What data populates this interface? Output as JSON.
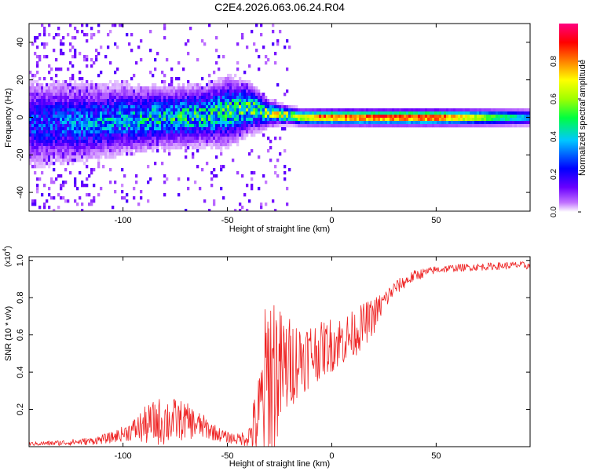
{
  "figure_title": "C2E4.2026.063.06.24.R04",
  "chart_data": [
    {
      "type": "heatmap",
      "title": "C2E4.2026.063.06.24.R04",
      "xlabel": "Height of straight line (km)",
      "ylabel": "Frequency (Hz)",
      "xlim": [
        -145,
        95
      ],
      "ylim": [
        -50,
        50
      ],
      "x_ticks": [
        -100,
        -50,
        0,
        50
      ],
      "x_tick_labels": [
        "-100",
        "-50",
        "0",
        "50"
      ],
      "y_ticks": [
        -40,
        -20,
        0,
        20,
        40
      ],
      "y_tick_labels": [
        "-40",
        "-20",
        "0",
        "20",
        "40"
      ],
      "colorbar": {
        "label": "Normalized spectral amplitude",
        "range": [
          0,
          1
        ],
        "ticks": [
          0.0,
          0.2,
          0.4,
          0.6,
          0.8
        ],
        "tick_labels": [
          "0.0",
          "0.2",
          "0.4",
          "0.6",
          "0.8"
        ],
        "colors": [
          "#ffffff",
          "#c070ff",
          "#6a00ff",
          "#0000ff",
          "#00c8ff",
          "#00ff40",
          "#a0ff00",
          "#ffff00",
          "#ff8000",
          "#ff0000",
          "#ff0080"
        ]
      },
      "ridge": {
        "x": [
          -145,
          -120,
          -100,
          -80,
          -60,
          -50,
          -40,
          -30,
          -20,
          -15,
          0,
          50,
          95
        ],
        "center_hz": [
          -3,
          -3,
          -1,
          0,
          1,
          3,
          5,
          2,
          1,
          0,
          0,
          0,
          0
        ],
        "spread_hz": [
          10,
          9,
          8,
          7,
          7,
          8,
          6,
          3,
          2,
          2,
          2,
          2,
          2
        ],
        "peak_amplitude": [
          0.25,
          0.3,
          0.35,
          0.4,
          0.42,
          0.45,
          0.5,
          0.55,
          0.6,
          0.7,
          0.85,
          0.9,
          0.35
        ]
      }
    },
    {
      "type": "line",
      "xlabel": "Height of straight line (km)",
      "ylabel": "SNR (10 * v/v)",
      "y_multiplier_label": "(x10",
      "y_multiplier_exponent": "4",
      "xlim": [
        -145,
        95
      ],
      "ylim": [
        0,
        1.02
      ],
      "x_ticks": [
        -100,
        -50,
        0,
        50
      ],
      "x_tick_labels": [
        "-100",
        "-50",
        "0",
        "50"
      ],
      "y_ticks": [
        0.2,
        0.4,
        0.6,
        0.8,
        1.0
      ],
      "y_tick_labels": [
        "0.2",
        "0.4",
        "0.6",
        "0.8",
        "1.0"
      ],
      "series": [
        {
          "name": "SNR",
          "color": "#ee2222",
          "envelope": {
            "x": [
              -145,
              -130,
              -115,
              -105,
              -100,
              -95,
              -90,
              -85,
              -80,
              -75,
              -70,
              -65,
              -60,
              -55,
              -50,
              -45,
              -40,
              -35,
              -32,
              -30,
              -27,
              -25,
              -22,
              -20,
              -15,
              -10,
              -5,
              0,
              5,
              10,
              15,
              20,
              25,
              30,
              40,
              50,
              60,
              70,
              80,
              90,
              95
            ],
            "mean": [
              0.015,
              0.02,
              0.03,
              0.05,
              0.07,
              0.09,
              0.11,
              0.13,
              0.14,
              0.14,
              0.14,
              0.12,
              0.1,
              0.07,
              0.05,
              0.04,
              0.05,
              0.15,
              0.3,
              0.4,
              0.42,
              0.4,
              0.42,
              0.45,
              0.48,
              0.5,
              0.52,
              0.55,
              0.57,
              0.6,
              0.65,
              0.7,
              0.78,
              0.85,
              0.92,
              0.95,
              0.96,
              0.965,
              0.97,
              0.975,
              0.97
            ],
            "amp": [
              0.01,
              0.015,
              0.02,
              0.03,
              0.04,
              0.06,
              0.1,
              0.12,
              0.14,
              0.12,
              0.1,
              0.08,
              0.06,
              0.04,
              0.03,
              0.03,
              0.05,
              0.25,
              0.45,
              0.55,
              0.45,
              0.35,
              0.3,
              0.25,
              0.2,
              0.18,
              0.15,
              0.15,
              0.14,
              0.13,
              0.12,
              0.1,
              0.06,
              0.04,
              0.03,
              0.02,
              0.02,
              0.02,
              0.02,
              0.02,
              0.02
            ]
          }
        }
      ]
    }
  ]
}
